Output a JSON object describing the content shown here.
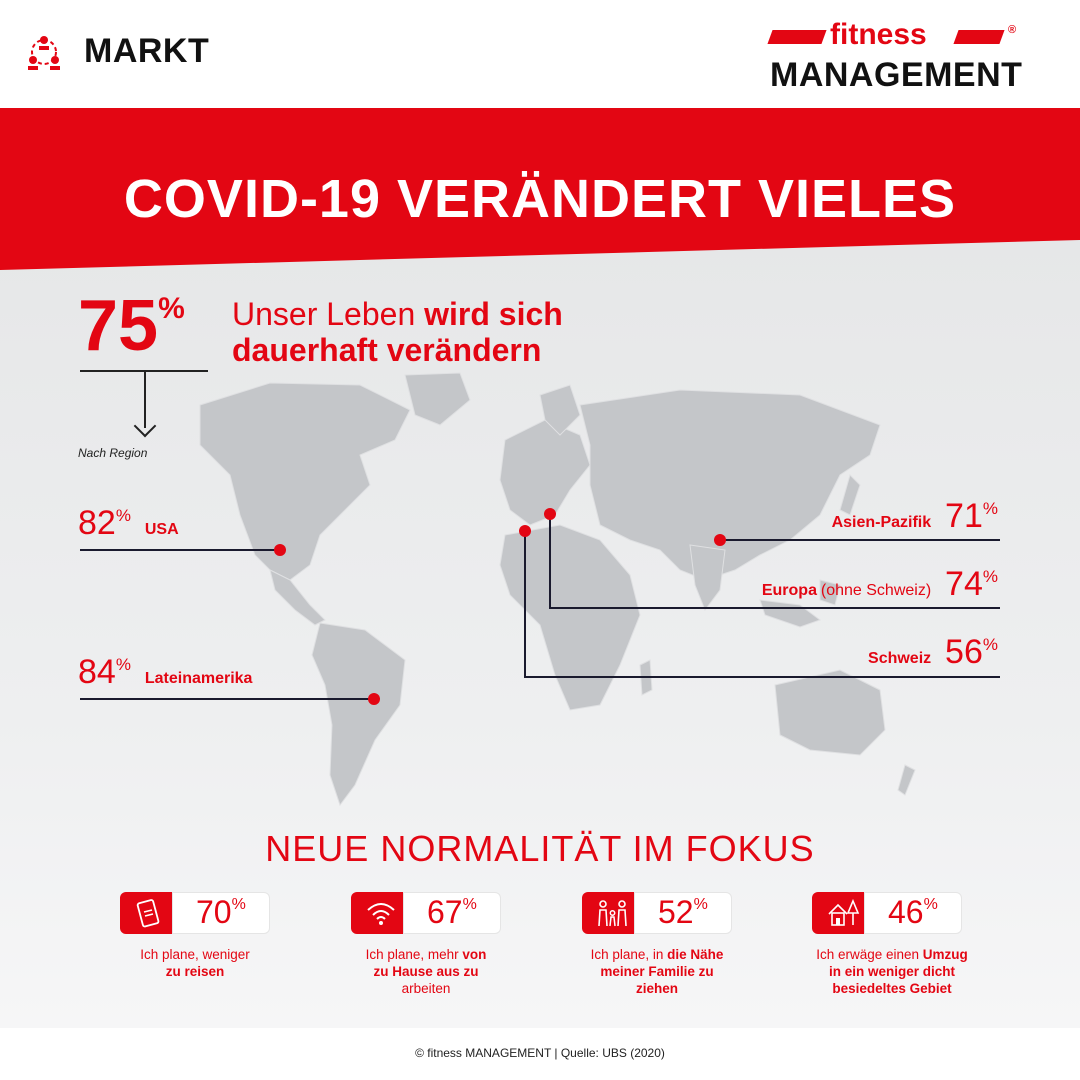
{
  "header": {
    "section_label": "MARKT",
    "logo_top": "fitness",
    "logo_bottom": "MANAGEMENT",
    "logo_reg": "®"
  },
  "banner": {
    "title": "COVID-19 VERÄNDERT VIELES"
  },
  "headline": {
    "pct": "75",
    "pct_sign": "%",
    "text_plain": "Unser Leben ",
    "text_bold_1": "wird sich",
    "text_bold_2": "dauerhaft verändern",
    "region_note": "Nach Region"
  },
  "regions": {
    "usa": {
      "pct": "82",
      "sign": "%",
      "label": "USA"
    },
    "latam": {
      "pct": "84",
      "sign": "%",
      "label": "Lateinamerika"
    },
    "apac": {
      "pct": "71",
      "sign": "%",
      "label": "Asien-Pazifik"
    },
    "europe": {
      "pct": "74",
      "sign": "%",
      "label": "Europa",
      "label_extra": "(ohne Schweiz)"
    },
    "swiss": {
      "pct": "56",
      "sign": "%",
      "label": "Schweiz"
    }
  },
  "focus": {
    "title": "NEUE NORMALITÄT IM FOKUS",
    "cards": [
      {
        "pct": "70",
        "sign": "%",
        "icon": "ticket-icon",
        "text_1": "Ich plane, weniger",
        "text_2_bold": "zu reisen"
      },
      {
        "pct": "67",
        "sign": "%",
        "icon": "wifi-icon",
        "text_1": "Ich plane, mehr ",
        "text_1_bold": "von",
        "text_2_bold": "zu Hause aus zu",
        "text_3": "arbeiten"
      },
      {
        "pct": "52",
        "sign": "%",
        "icon": "family-icon",
        "text_1": "Ich plane, in ",
        "text_1_bold": "die Nähe",
        "text_2_bold": "meiner Familie zu",
        "text_3_bold": "ziehen"
      },
      {
        "pct": "46",
        "sign": "%",
        "icon": "house-tree-icon",
        "text_1": "Ich erwäge einen ",
        "text_1_bold": "Umzug",
        "text_2_bold": "in ein weniger dicht",
        "text_3_bold": "besiedeltes Gebiet"
      }
    ]
  },
  "footer": {
    "text": "© fitness MANAGEMENT | Quelle: UBS (2020)"
  },
  "colors": {
    "accent": "#e30613",
    "dark": "#1a1a2e",
    "map": "#c4c6c9"
  }
}
